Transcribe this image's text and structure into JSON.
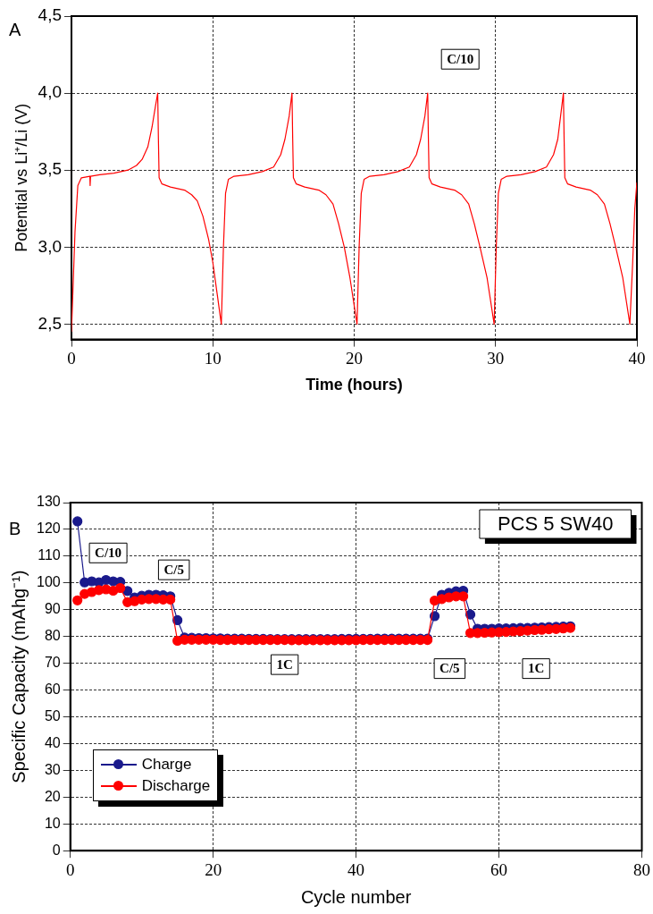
{
  "chart_data": [
    {
      "type": "line",
      "title": "A",
      "xlabel": "Time (hours)",
      "ylabel": "Potential vs Li⁺/Li (V)",
      "xlim": [
        0,
        40
      ],
      "xticks": [
        0,
        10,
        20,
        30,
        40
      ],
      "ylim": [
        2.4,
        4.5
      ],
      "yticks": [
        {
          "value": 2.5,
          "label": "2,5"
        },
        {
          "value": 3.0,
          "label": "3,0"
        },
        {
          "value": 3.5,
          "label": "3,5"
        },
        {
          "value": 4.0,
          "label": "4,0"
        },
        {
          "value": 4.5,
          "label": "4,5"
        }
      ],
      "grid": true,
      "legend": false,
      "marker": "none",
      "line_style": "solid",
      "annotations": [
        {
          "text": "C/10",
          "x": 27.5,
          "y": 4.22
        }
      ],
      "series": [
        {
          "color": "#ff0000",
          "x": [
            0.0,
            0.25,
            0.45,
            0.7,
            1.3,
            1.32,
            1.35,
            2.0,
            3.0,
            4.0,
            4.6,
            5.0,
            5.4,
            5.7,
            5.95,
            6.1,
            6.15,
            6.2,
            6.4,
            7.0,
            8.0,
            8.5,
            8.9,
            9.3,
            9.7,
            10.0,
            10.3,
            10.6,
            10.75,
            10.9,
            11.1,
            11.5,
            12.5,
            13.5,
            14.3,
            14.8,
            15.1,
            15.4,
            15.6,
            15.65,
            15.7,
            15.9,
            16.5,
            17.5,
            18.0,
            18.5,
            18.9,
            19.3,
            19.7,
            20.2,
            20.35,
            20.5,
            20.7,
            21.1,
            22.1,
            23.1,
            23.9,
            24.4,
            24.7,
            25.0,
            25.2,
            25.25,
            25.3,
            25.5,
            26.1,
            27.1,
            27.6,
            28.1,
            28.5,
            28.9,
            29.4,
            29.9,
            30.05,
            30.2,
            30.4,
            30.8,
            31.8,
            32.8,
            33.6,
            34.1,
            34.4,
            34.6,
            34.8,
            34.85,
            34.9,
            35.1,
            35.7,
            36.7,
            37.2,
            37.7,
            38.1,
            38.5,
            39.0,
            39.5,
            39.7,
            39.85,
            40.0
          ],
          "values": [
            2.45,
            3.1,
            3.4,
            3.45,
            3.46,
            3.4,
            3.46,
            3.47,
            3.48,
            3.5,
            3.53,
            3.57,
            3.65,
            3.78,
            3.92,
            4.0,
            3.7,
            3.45,
            3.41,
            3.39,
            3.37,
            3.34,
            3.3,
            3.2,
            3.05,
            2.9,
            2.7,
            2.5,
            3.0,
            3.35,
            3.44,
            3.46,
            3.47,
            3.49,
            3.52,
            3.6,
            3.7,
            3.85,
            4.0,
            3.7,
            3.45,
            3.41,
            3.39,
            3.37,
            3.34,
            3.28,
            3.15,
            3.0,
            2.8,
            2.5,
            3.0,
            3.35,
            3.44,
            3.46,
            3.47,
            3.49,
            3.52,
            3.6,
            3.7,
            3.85,
            4.0,
            3.7,
            3.45,
            3.41,
            3.39,
            3.37,
            3.34,
            3.28,
            3.15,
            3.0,
            2.8,
            2.5,
            3.0,
            3.35,
            3.44,
            3.46,
            3.47,
            3.49,
            3.52,
            3.6,
            3.7,
            3.85,
            4.0,
            3.7,
            3.45,
            3.41,
            3.39,
            3.37,
            3.34,
            3.28,
            3.15,
            3.0,
            2.8,
            2.5,
            2.9,
            3.25,
            3.42
          ]
        }
      ]
    },
    {
      "type": "line",
      "title": "B",
      "xlabel": "Cycle number",
      "ylabel": "Specific Capacity (mAhg⁻¹)",
      "xlim": [
        0,
        80
      ],
      "xticks": [
        0,
        20,
        40,
        60,
        80
      ],
      "ylim": [
        0,
        130
      ],
      "yticks": [
        0,
        10,
        20,
        30,
        40,
        50,
        60,
        70,
        80,
        90,
        100,
        110,
        120,
        130
      ],
      "grid": true,
      "legend": "bottom left",
      "marker": "circle",
      "line_style": "solid",
      "annotations": [
        "PCS 5 SW40",
        {
          "text": "C/10",
          "x": 5.3,
          "y": 111.2
        },
        {
          "text": "C/5",
          "x": 14.5,
          "y": 104.9
        },
        {
          "text": "1C",
          "x": 30,
          "y": 69.5
        },
        {
          "text": "C/5",
          "x": 53.1,
          "y": 68
        },
        {
          "text": "1C",
          "x": 65.2,
          "y": 68
        }
      ],
      "x": [
        1,
        2,
        3,
        4,
        5,
        6,
        7,
        8,
        9,
        10,
        11,
        12,
        13,
        14,
        15,
        16,
        17,
        18,
        19,
        20,
        21,
        22,
        23,
        24,
        25,
        26,
        27,
        28,
        29,
        30,
        31,
        32,
        33,
        34,
        35,
        36,
        37,
        38,
        39,
        40,
        41,
        42,
        43,
        44,
        45,
        46,
        47,
        48,
        49,
        50,
        51,
        52,
        53,
        54,
        55,
        56,
        57,
        58,
        59,
        60,
        61,
        62,
        63,
        64,
        65,
        66,
        67,
        68,
        69,
        70
      ],
      "series": [
        {
          "name": "Charge",
          "color": "#1a1a8c",
          "values": [
            123,
            100.2,
            100.6,
            100.2,
            101.1,
            100.6,
            100.4,
            97,
            94.6,
            95.2,
            95.6,
            95.6,
            95.4,
            95,
            86.1,
            79.6,
            79.5,
            79.4,
            79.4,
            79.3,
            79.3,
            79.2,
            79.2,
            79.2,
            79.1,
            79.1,
            79.1,
            79.0,
            79.0,
            79.0,
            79.0,
            79.0,
            79.0,
            79.0,
            79.0,
            79.0,
            79.0,
            79.1,
            79.1,
            79.1,
            79.1,
            79.1,
            79.2,
            79.2,
            79.2,
            79.2,
            79.2,
            79.2,
            79.2,
            79.2,
            87.6,
            95.6,
            96.3,
            96.9,
            97.1,
            88.2,
            82.9,
            82.9,
            82.9,
            83.0,
            83.0,
            83.1,
            83.2,
            83.2,
            83.3,
            83.4,
            83.5,
            83.6,
            83.7,
            83.8
          ]
        },
        {
          "name": "Discharge",
          "color": "#ff0000",
          "values": [
            93.5,
            95.9,
            96.6,
            97.3,
            97.6,
            97.1,
            98.1,
            92.8,
            93.2,
            93.8,
            94,
            94,
            93.8,
            93.8,
            78.4,
            78.8,
            78.8,
            78.8,
            78.8,
            78.8,
            78.7,
            78.7,
            78.7,
            78.7,
            78.7,
            78.7,
            78.7,
            78.7,
            78.7,
            78.7,
            78.6,
            78.6,
            78.6,
            78.6,
            78.6,
            78.6,
            78.6,
            78.6,
            78.6,
            78.6,
            78.7,
            78.7,
            78.7,
            78.7,
            78.7,
            78.7,
            78.7,
            78.7,
            78.7,
            78.7,
            93.4,
            94,
            94.6,
            95,
            95,
            81.3,
            81.3,
            81.4,
            81.5,
            81.6,
            81.7,
            81.9,
            82.0,
            82.2,
            82.4,
            82.5,
            82.7,
            82.8,
            83.0,
            83.2
          ]
        }
      ]
    }
  ]
}
